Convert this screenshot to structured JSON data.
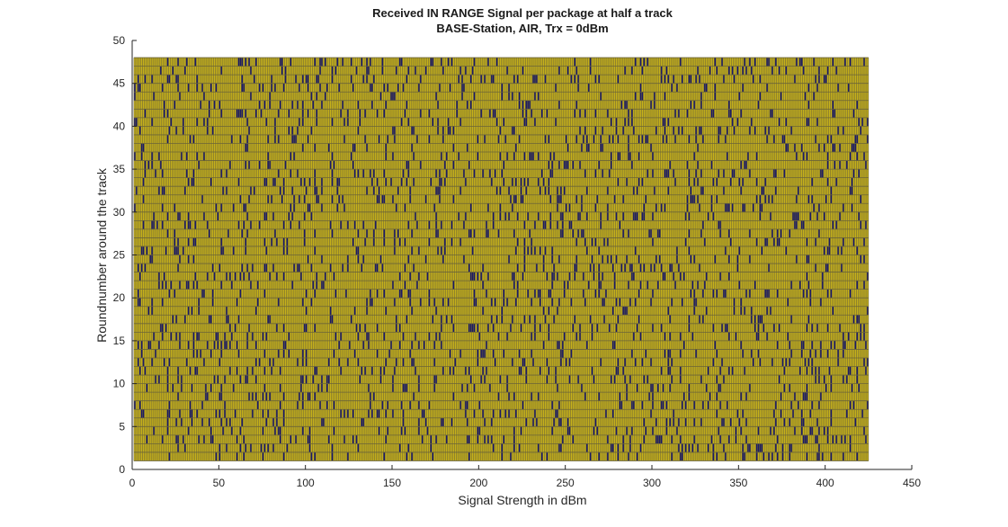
{
  "chart_data": {
    "type": "heatmap",
    "title": "Received IN RANGE Signal per package at half a track",
    "subtitle": "BASE-Station, AIR, Trx = 0dBm",
    "xlabel": "Signal Strength in dBm",
    "ylabel": "Roundnumber around the track",
    "xlim": [
      0,
      450
    ],
    "ylim": [
      0,
      50
    ],
    "xticks": [
      "0",
      "50",
      "100",
      "150",
      "200",
      "250",
      "300",
      "350",
      "400",
      "450"
    ],
    "yticks": [
      "0",
      "5",
      "10",
      "15",
      "20",
      "25",
      "30",
      "35",
      "40",
      "45",
      "50"
    ],
    "x_range": [
      1,
      424
    ],
    "y_range": [
      1,
      47
    ],
    "grid": false,
    "colors": {
      "received": "#c7b21a",
      "not_received": "#1c1a66",
      "cell_edge": "#6b6438"
    }
  }
}
